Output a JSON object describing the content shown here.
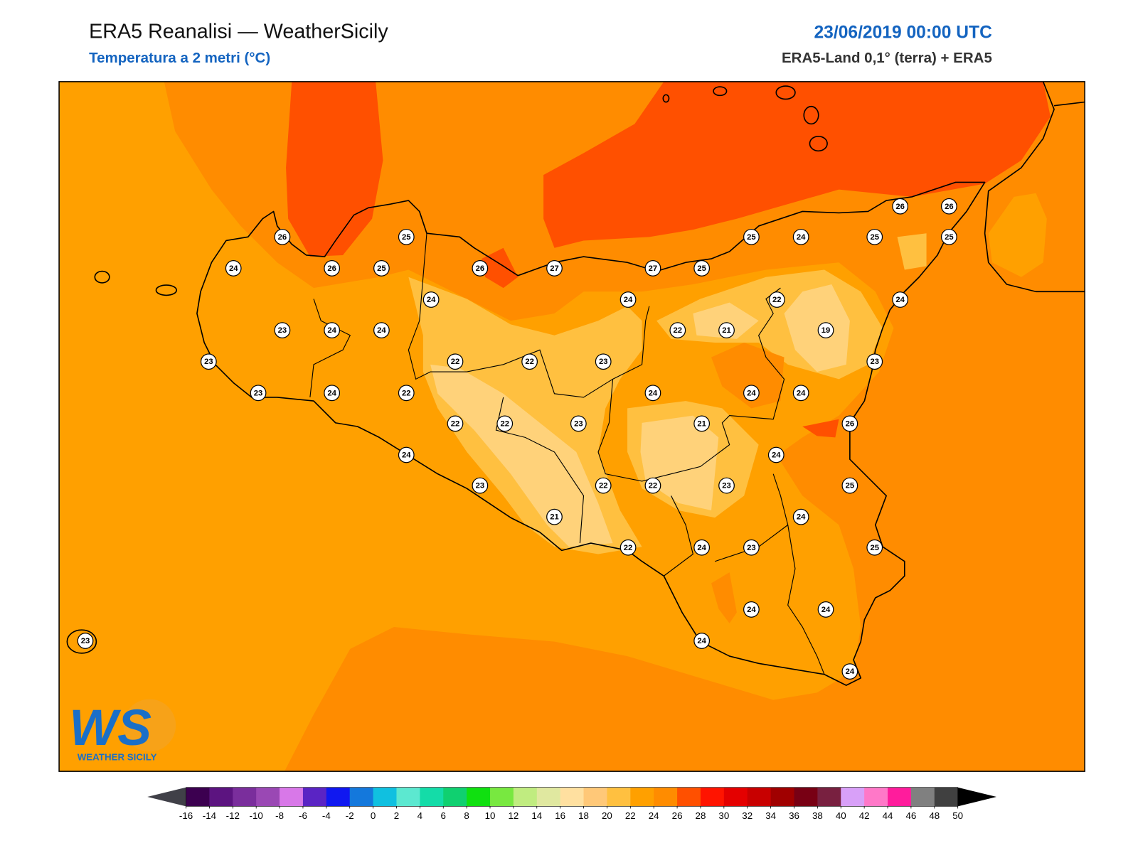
{
  "header": {
    "title": "ERA5 Reanalisi — WeatherSicily",
    "subtitle": "Temperatura a 2 metri (°C)",
    "date": "23/06/2019 00:00 UTC",
    "source": "ERA5-Land 0,1° (terra) + ERA5"
  },
  "stations": [
    26,
    25,
    24,
    26,
    25,
    26,
    27,
    27,
    25,
    25,
    24,
    25,
    25,
    26,
    26,
    24,
    24,
    22,
    24,
    23,
    24,
    24,
    22,
    21,
    19,
    23,
    22,
    22,
    23,
    23,
    23,
    24,
    22,
    24,
    24,
    24,
    22,
    22,
    23,
    21,
    26,
    24,
    24,
    23,
    22,
    22,
    23,
    25,
    21,
    24,
    22,
    24,
    23,
    25,
    24,
    24,
    24,
    23,
    24
  ],
  "logo": {
    "text": "WS",
    "caption": "WEATHER SICILY"
  },
  "colorbar": {
    "ticks": [
      -16,
      -14,
      -12,
      -10,
      -8,
      -6,
      -4,
      -2,
      0,
      2,
      4,
      6,
      8,
      10,
      12,
      14,
      16,
      18,
      20,
      22,
      24,
      26,
      28,
      30,
      32,
      34,
      36,
      38,
      40,
      42,
      44,
      46,
      48,
      50
    ],
    "colors": [
      "#3c0050",
      "#5c1480",
      "#7a2e9c",
      "#9a48b4",
      "#d878e8",
      "#5a24c4",
      "#1018f0",
      "#1478dc",
      "#10c0e0",
      "#5ce8d0",
      "#14dca8",
      "#10d070",
      "#10e010",
      "#78e840",
      "#c0ec80",
      "#e0e8a0",
      "#ffe0a0",
      "#ffc878",
      "#ffc040",
      "#ffa000",
      "#ff8c00",
      "#ff5000",
      "#ff1400",
      "#e40000",
      "#c80000",
      "#a00000",
      "#780014",
      "#782040",
      "#d8a0f8",
      "#ff78c8",
      "#ff1c9c",
      "#808080",
      "#404040"
    ],
    "under_color": "#404048",
    "over_color": "#000000"
  }
}
